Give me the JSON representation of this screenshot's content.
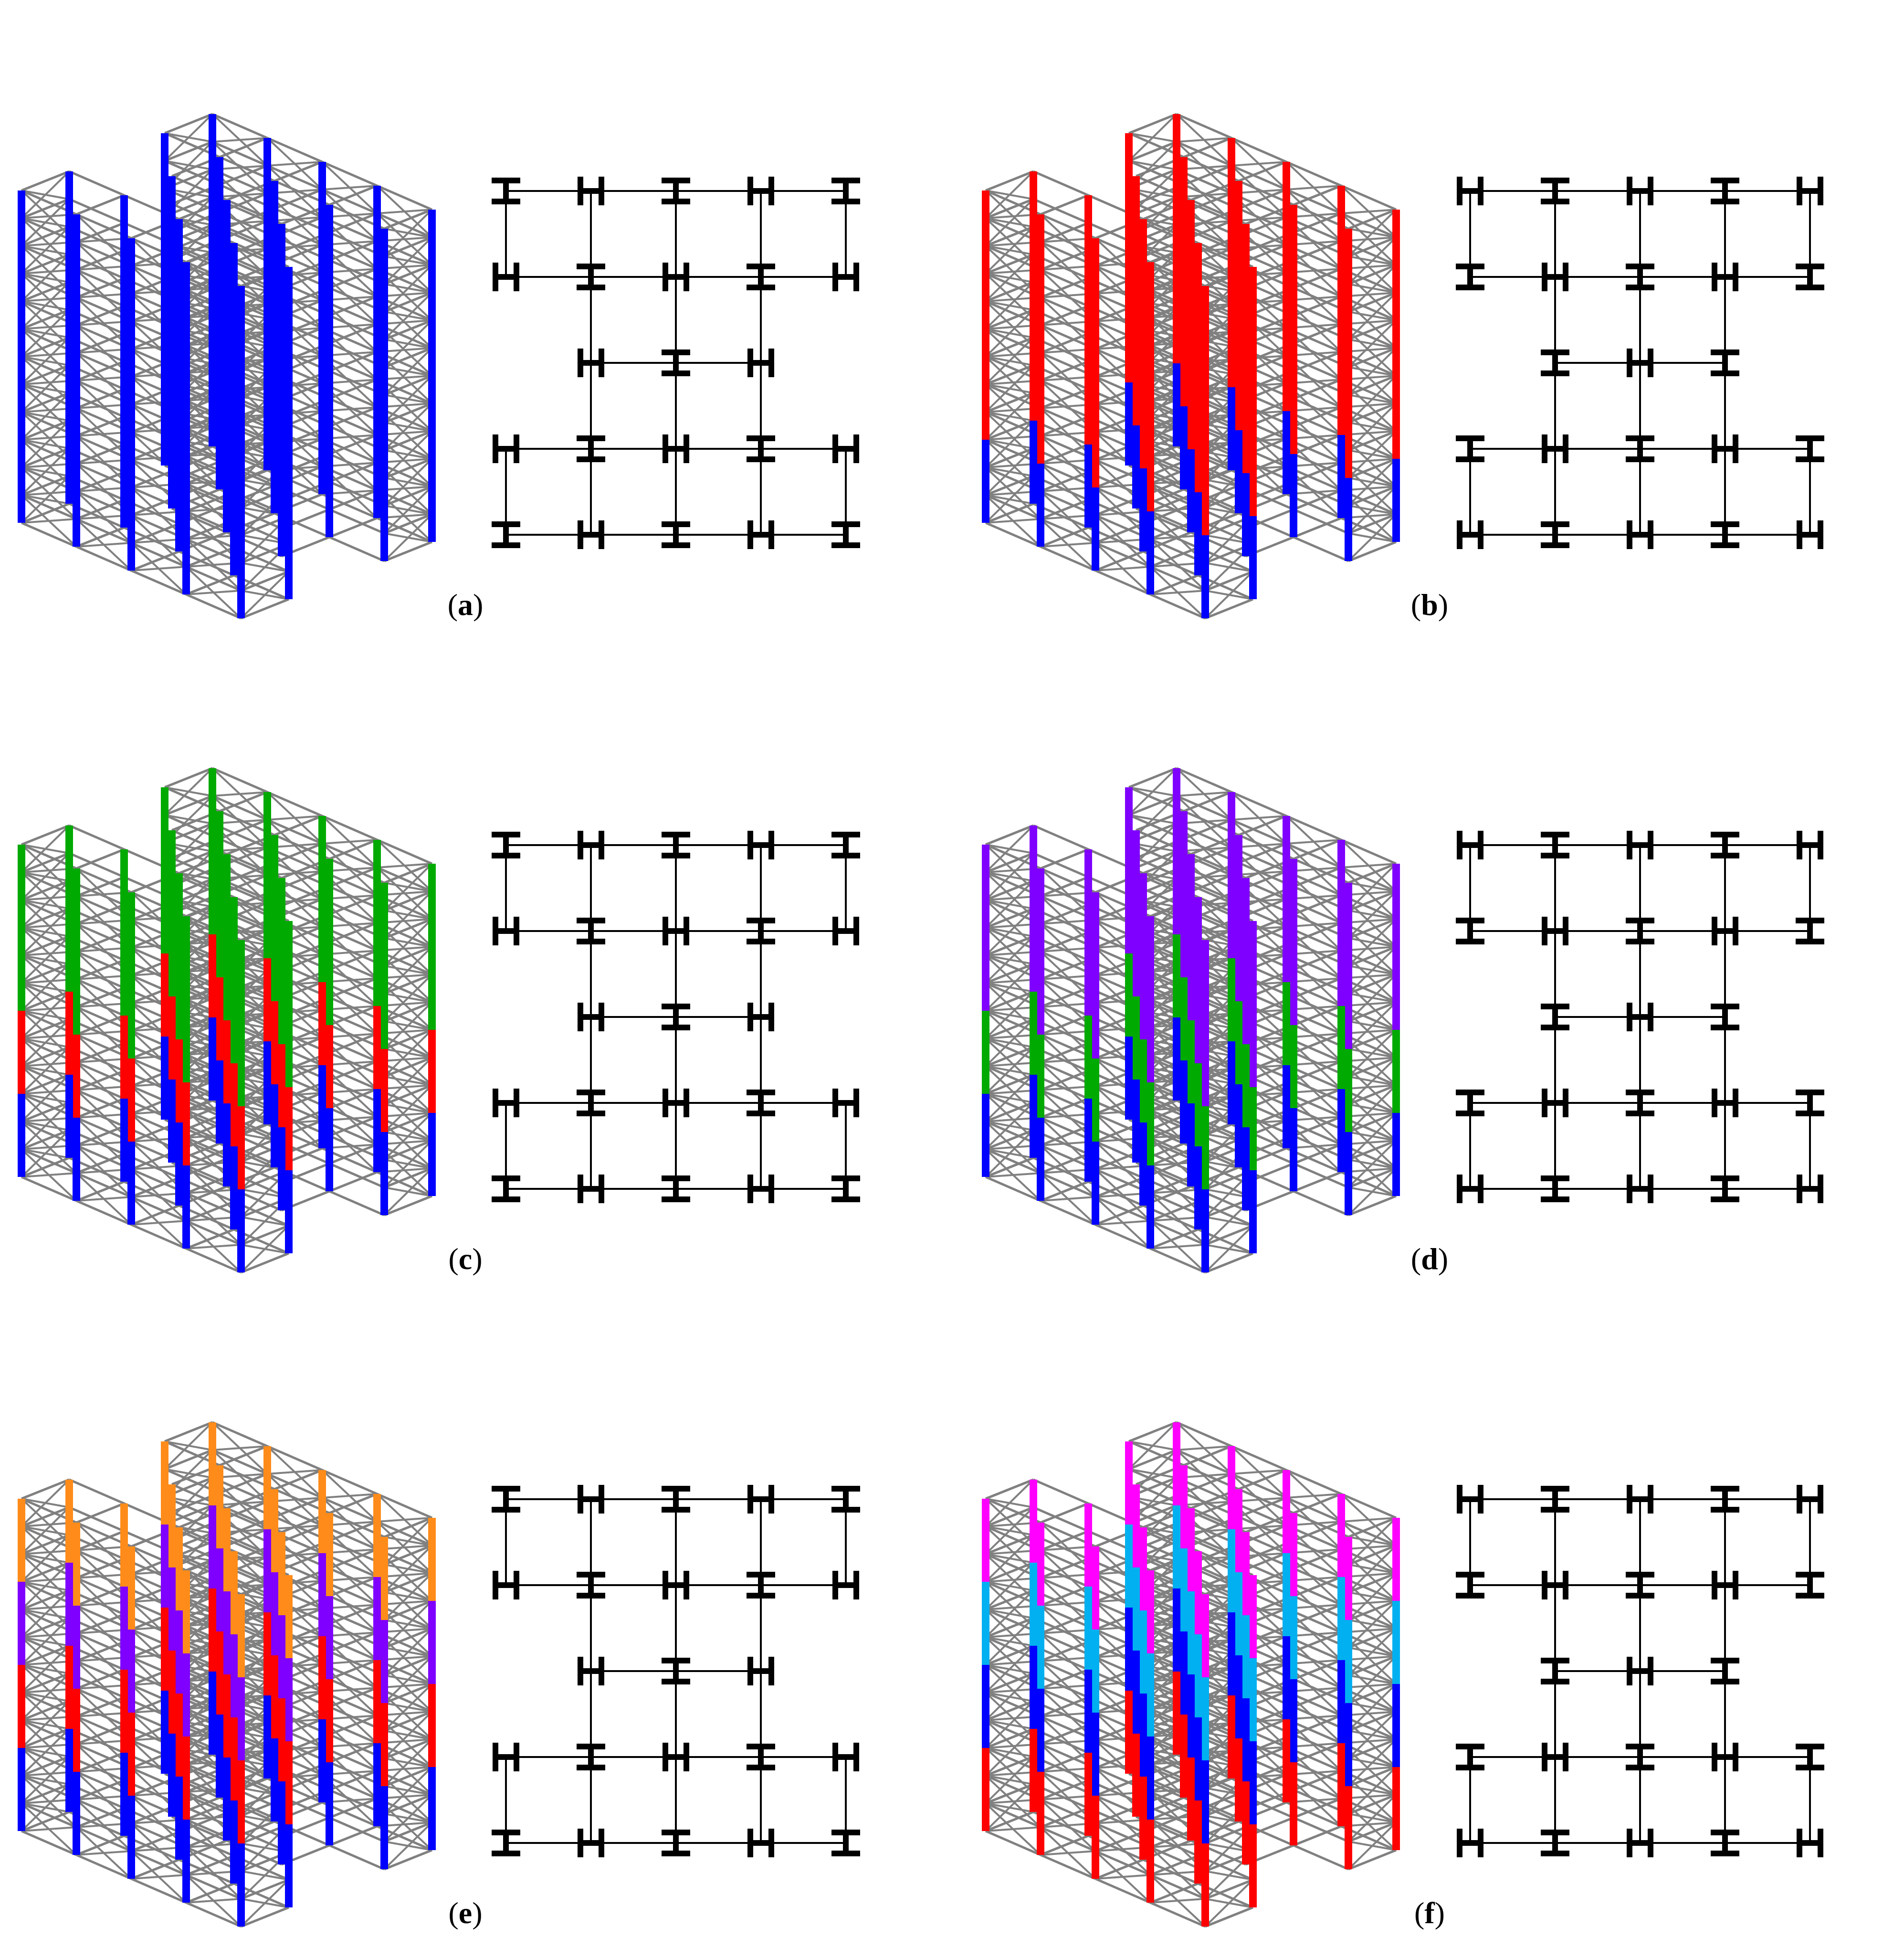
{
  "colors": {
    "frame": "#808080",
    "plan": "#000000",
    "blue": "#0000ff",
    "red": "#ff0000",
    "green": "#00aa00",
    "purple": "#7f00ff",
    "orange": "#ff8c1a",
    "magenta": "#ff00ff",
    "cyan": "#00b0f0"
  },
  "panels": [
    {
      "label": "a",
      "colors": [
        "blue",
        "blue",
        "blue",
        "blue"
      ]
    },
    {
      "label": "b",
      "colors": [
        "blue",
        "red",
        "red",
        "red"
      ]
    },
    {
      "label": "c",
      "colors": [
        "blue",
        "red",
        "green",
        "green"
      ]
    },
    {
      "label": "d",
      "colors": [
        "blue",
        "green",
        "purple",
        "purple"
      ]
    },
    {
      "label": "e",
      "colors": [
        "blue",
        "red",
        "purple",
        "orange"
      ]
    },
    {
      "label": "f",
      "colors": [
        "red",
        "blue",
        "cyan",
        "magenta"
      ]
    }
  ]
}
